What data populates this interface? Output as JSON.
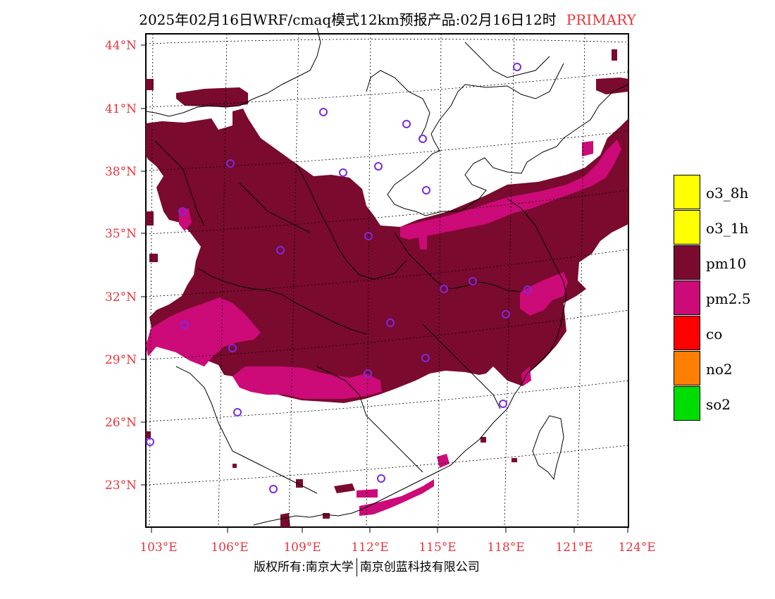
{
  "title": {
    "text": "2025年02月16日WRF/cmaq模式12km预报产品:02月16日12时",
    "tag": "PRIMARY"
  },
  "map": {
    "lat_labels": [
      "44°N",
      "41°N",
      "38°N",
      "35°N",
      "32°N",
      "29°N",
      "26°N",
      "23°N"
    ],
    "lon_labels": [
      "103°E",
      "106°E",
      "109°E",
      "112°E",
      "115°E",
      "118°E",
      "121°E",
      "124°E"
    ]
  },
  "legend": {
    "items": [
      {
        "label": "o3_8h",
        "color": "#ffff00"
      },
      {
        "label": "o3_1h",
        "color": "#ffff00"
      },
      {
        "label": "pm10",
        "color": "#7a0a2e"
      },
      {
        "label": "pm2.5",
        "color": "#cc0a78"
      },
      {
        "label": "co",
        "color": "#ff0000"
      },
      {
        "label": "no2",
        "color": "#ff7f00"
      },
      {
        "label": "so2",
        "color": "#00dd00"
      }
    ]
  },
  "copyright": {
    "left": "版权所有:南京大学",
    "right": "南京创蓝科技有限公司"
  },
  "colors": {
    "axis_label": "#e8343b",
    "pm10": "#7a0a2e",
    "pm25": "#cc0a78",
    "station": "#7a2be2"
  }
}
